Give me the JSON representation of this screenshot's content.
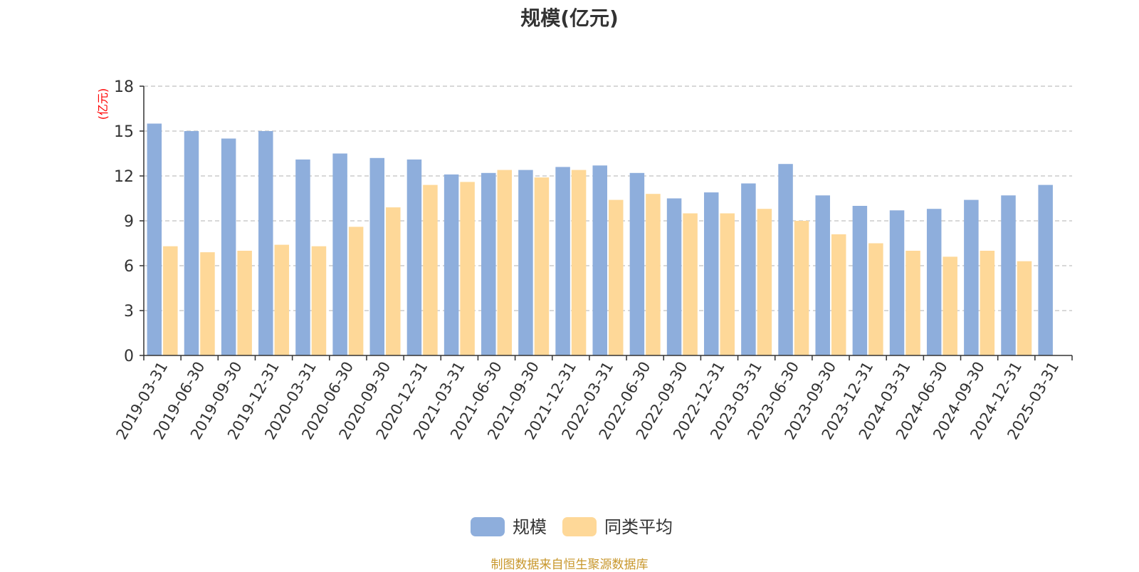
{
  "chart_data": {
    "type": "bar",
    "title": "规模(亿元)",
    "ylabel": "(亿元)",
    "xlabel": "",
    "ylim": [
      0,
      18
    ],
    "yticks": [
      0,
      3,
      6,
      9,
      12,
      15,
      18
    ],
    "grid": true,
    "legend_position": "bottom-center",
    "categories": [
      "2019-03-31",
      "2019-06-30",
      "2019-09-30",
      "2019-12-31",
      "2020-03-31",
      "2020-06-30",
      "2020-09-30",
      "2020-12-31",
      "2021-03-31",
      "2021-06-30",
      "2021-09-30",
      "2021-12-31",
      "2022-03-31",
      "2022-06-30",
      "2022-09-30",
      "2022-12-31",
      "2023-03-31",
      "2023-06-30",
      "2023-09-30",
      "2023-12-31",
      "2024-03-31",
      "2024-06-30",
      "2024-09-30",
      "2024-12-31",
      "2025-03-31"
    ],
    "series": [
      {
        "name": "规模",
        "color": "#8eaedc",
        "values": [
          15.5,
          15.0,
          14.5,
          15.0,
          13.1,
          13.5,
          13.2,
          13.1,
          12.1,
          12.2,
          12.4,
          12.6,
          12.7,
          12.2,
          10.5,
          10.9,
          11.5,
          12.8,
          10.7,
          10.0,
          9.7,
          9.8,
          10.4,
          10.7,
          11.4
        ]
      },
      {
        "name": "同类平均",
        "color": "#fed898",
        "values": [
          7.3,
          6.9,
          7.0,
          7.4,
          7.3,
          8.6,
          9.9,
          11.4,
          11.6,
          12.4,
          11.9,
          12.4,
          10.4,
          10.8,
          9.5,
          9.5,
          9.8,
          9.0,
          8.1,
          7.5,
          7.0,
          6.6,
          7.0,
          6.3,
          null
        ]
      }
    ]
  },
  "source_note": "制图数据来自恒生聚源数据库",
  "colors": {
    "title": "#333333",
    "axis_label": "#ff0000",
    "grid": "#cccccc",
    "axis": "#333333",
    "source_note": "#c8972c"
  }
}
